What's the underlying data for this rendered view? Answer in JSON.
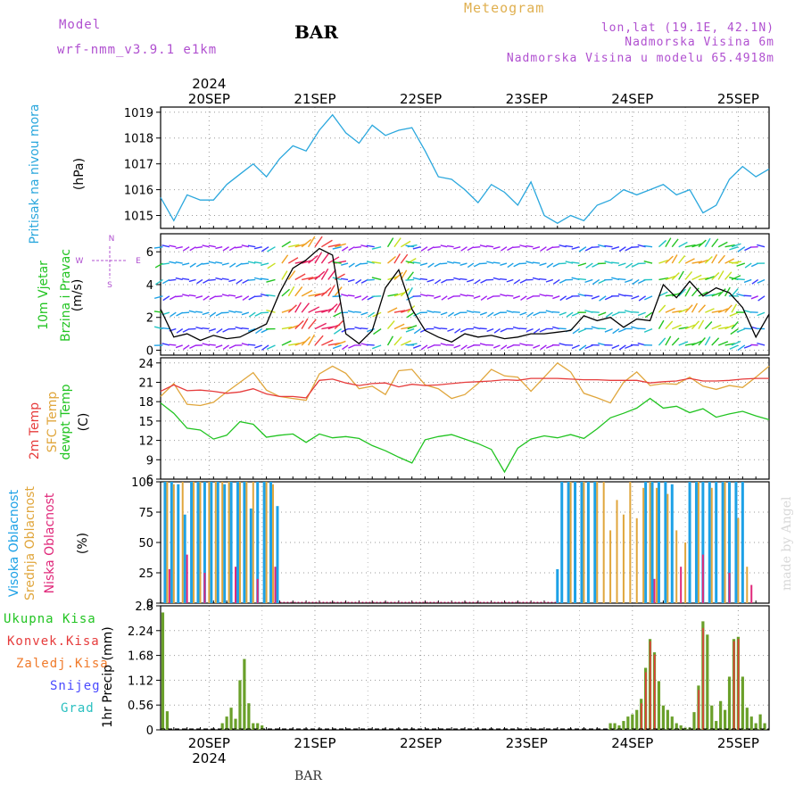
{
  "header": {
    "model_label": "Model",
    "model_value": "wrf-nmm_v3.9.1 e1km",
    "station": "BAR",
    "title": "Meteogram",
    "coords": "lon,lat (19.1E, 42.1N)",
    "elev": "Nadmorska Visina 6m",
    "elev_model": "Nadmorska Visina u modelu 65.4918m",
    "footer_station": "BAR",
    "watermark": "made by Angel"
  },
  "colors": {
    "pressure": "#2aa7dd",
    "t2m": "#e63c3c",
    "sfc": "#e0a63c",
    "dew": "#22c422",
    "high_cloud": "#1da1e6",
    "mid_cloud": "#e0a63c",
    "low_cloud": "#e0287a",
    "total_precip": "#6aa02a",
    "conv_precip": "#e63c3c",
    "snow": "#4a4aff",
    "hail": "#2ac0c0",
    "title": "#e0b050",
    "purple": "#b050d0"
  },
  "chart_data": [
    {
      "type": "line",
      "ylabel": "Pritisak na nivou mora",
      "unit": "(hPa)",
      "ylim": [
        1014.5,
        1019.2
      ],
      "yticks": [
        "1015",
        "1016",
        "1017",
        "1018",
        "1019"
      ],
      "ytick_values": [
        1015,
        1016,
        1017,
        1018,
        1019
      ],
      "xlim": [
        0,
        138
      ],
      "series": [
        {
          "key": "mslp",
          "x": [
            0,
            3,
            6,
            9,
            12,
            15,
            18,
            21,
            24,
            27,
            30,
            33,
            36,
            39,
            42,
            45,
            48,
            51,
            54,
            57,
            60,
            63,
            66,
            69,
            72,
            75,
            78,
            81,
            84,
            87,
            90,
            93,
            96,
            99,
            102,
            105,
            108,
            111,
            114,
            117,
            120,
            123,
            126,
            129,
            132,
            135,
            138
          ],
          "y": [
            1015.7,
            1014.8,
            1015.8,
            1015.6,
            1015.6,
            1016.2,
            1016.6,
            1017.0,
            1016.5,
            1017.2,
            1017.7,
            1017.5,
            1018.3,
            1018.9,
            1018.2,
            1017.8,
            1018.5,
            1018.1,
            1018.3,
            1018.4,
            1017.5,
            1016.5,
            1016.4,
            1016.0,
            1015.5,
            1016.2,
            1015.9,
            1015.4,
            1016.3,
            1015.0,
            1014.7,
            1015.0,
            1014.8,
            1015.4,
            1015.6,
            1016.0,
            1015.8,
            1016.0,
            1016.2,
            1015.8,
            1016.0,
            1015.1,
            1015.4,
            1016.4,
            1016.9,
            1016.5,
            1016.8
          ]
        }
      ]
    },
    {
      "type": "line",
      "ylabel": "10m Vjetar",
      "ylabel2": "Brzina i Pravac",
      "unit": "(m/s)",
      "compass": [
        "N",
        "W",
        "E",
        "S"
      ],
      "ylim": [
        -0.3,
        7.1
      ],
      "yticks": [
        "0",
        "2",
        "4",
        "6"
      ],
      "ytick_values": [
        0,
        2,
        4,
        6
      ],
      "xlim": [
        0,
        138
      ],
      "speed": {
        "x": [
          0,
          3,
          6,
          9,
          12,
          15,
          18,
          21,
          24,
          27,
          30,
          33,
          36,
          39,
          42,
          45,
          48,
          51,
          54,
          57,
          60,
          63,
          66,
          69,
          72,
          75,
          78,
          81,
          84,
          87,
          90,
          93,
          96,
          99,
          102,
          105,
          108,
          111,
          114,
          117,
          120,
          123,
          126,
          129,
          132,
          135,
          138
        ],
        "y": [
          2.5,
          0.8,
          1.0,
          0.6,
          0.9,
          0.7,
          0.8,
          1.2,
          1.6,
          3.5,
          5.0,
          5.5,
          6.2,
          5.8,
          1.0,
          0.4,
          1.2,
          3.8,
          4.9,
          2.5,
          1.2,
          0.8,
          0.5,
          1.0,
          0.8,
          0.9,
          0.7,
          0.8,
          1.0,
          1.0,
          1.1,
          1.2,
          2.1,
          1.8,
          2.0,
          1.4,
          1.9,
          1.8,
          4.0,
          3.2,
          4.2,
          3.3,
          3.8,
          3.5,
          2.6,
          0.8,
          2.2
        ]
      }
    },
    {
      "type": "line",
      "ylabels": [
        "2m Temp",
        "SFC Temp",
        "dewpt Temp"
      ],
      "unit": "(C)",
      "ylim": [
        6,
        24.8
      ],
      "yticks": [
        "6",
        "9",
        "12",
        "15",
        "18",
        "21",
        "24"
      ],
      "ytick_values": [
        6,
        9,
        12,
        15,
        18,
        21,
        24
      ],
      "xlim": [
        0,
        138
      ],
      "series": [
        {
          "key": "t2m",
          "x": [
            0,
            3,
            6,
            9,
            12,
            15,
            18,
            21,
            24,
            27,
            30,
            33,
            36,
            39,
            42,
            45,
            48,
            51,
            54,
            57,
            60,
            63,
            66,
            69,
            72,
            75,
            78,
            81,
            84,
            87,
            90,
            93,
            96,
            99,
            102,
            105,
            108,
            111,
            114,
            117,
            120,
            123,
            126,
            129,
            132,
            135,
            138
          ],
          "y": [
            19.6,
            20.6,
            19.7,
            19.8,
            19.6,
            19.3,
            19.5,
            20.0,
            19.2,
            18.8,
            18.8,
            18.6,
            21.3,
            21.5,
            20.9,
            20.5,
            20.8,
            20.9,
            20.3,
            20.7,
            20.5,
            20.6,
            20.8,
            21.0,
            21.1,
            21.2,
            21.4,
            21.3,
            21.6,
            21.6,
            21.6,
            21.5,
            21.4,
            21.4,
            21.3,
            21.3,
            21.3,
            20.9,
            21.1,
            21.2,
            21.6,
            21.2,
            21.2,
            21.3,
            21.5,
            21.6,
            21.6
          ]
        },
        {
          "key": "sfc",
          "x": [
            0,
            3,
            6,
            9,
            12,
            15,
            18,
            21,
            24,
            27,
            30,
            33,
            36,
            39,
            42,
            45,
            48,
            51,
            54,
            57,
            60,
            63,
            66,
            69,
            72,
            75,
            78,
            81,
            84,
            87,
            90,
            93,
            96,
            99,
            102,
            105,
            108,
            111,
            114,
            117,
            120,
            123,
            126,
            129,
            132,
            135,
            138
          ],
          "y": [
            18.8,
            20.8,
            17.6,
            17.4,
            17.9,
            19.5,
            21.0,
            22.5,
            19.8,
            18.8,
            18.5,
            18.2,
            22.3,
            23.5,
            22.4,
            20.0,
            20.4,
            19.1,
            22.8,
            23.0,
            20.6,
            20.0,
            18.5,
            19.1,
            20.8,
            23.0,
            22.0,
            21.8,
            19.6,
            21.8,
            24.0,
            22.6,
            19.3,
            18.6,
            17.8,
            21.0,
            22.6,
            20.5,
            20.8,
            20.7,
            21.8,
            20.4,
            19.9,
            20.5,
            20.2,
            21.8,
            23.5
          ]
        },
        {
          "key": "dew",
          "x": [
            0,
            3,
            6,
            9,
            12,
            15,
            18,
            21,
            24,
            27,
            30,
            33,
            36,
            39,
            42,
            45,
            48,
            51,
            54,
            57,
            60,
            63,
            66,
            69,
            72,
            75,
            78,
            81,
            84,
            87,
            90,
            93,
            96,
            99,
            102,
            105,
            108,
            111,
            114,
            117,
            120,
            123,
            126,
            129,
            132,
            135,
            138
          ],
          "y": [
            17.8,
            16.2,
            13.9,
            13.6,
            12.2,
            12.8,
            14.9,
            14.5,
            12.5,
            12.8,
            13.0,
            11.7,
            13.0,
            12.4,
            12.6,
            12.3,
            11.2,
            10.4,
            9.4,
            8.5,
            12.1,
            12.6,
            12.9,
            12.2,
            11.5,
            10.6,
            7.1,
            10.8,
            12.2,
            12.7,
            12.4,
            12.9,
            12.3,
            13.8,
            15.5,
            16.2,
            17.0,
            18.5,
            17.0,
            17.3,
            16.3,
            16.9,
            15.6,
            16.1,
            16.5,
            15.8,
            15.2
          ]
        }
      ]
    },
    {
      "type": "bar",
      "ylabels": [
        "Visoka Oblacnost",
        "Srednja Oblacnost",
        "Niska Oblacnost"
      ],
      "unit": "(%)",
      "ylim": [
        0,
        100
      ],
      "yticks": [
        "0",
        "25",
        "50",
        "75",
        "100"
      ],
      "ytick_values": [
        0,
        25,
        50,
        75,
        100
      ],
      "xlim": [
        0,
        138
      ],
      "series": [
        {
          "key": "high",
          "x": [
            1,
            2.5,
            4,
            5.5,
            7,
            8.5,
            10,
            11.5,
            13,
            14.5,
            16,
            17.5,
            19,
            20.5,
            22,
            23.5,
            25,
            26.5,
            90,
            91,
            92.5,
            94,
            95.5,
            97,
            98.5,
            110,
            111.5,
            113,
            114.5,
            116,
            120,
            121.5,
            123,
            124.5,
            126,
            127.5,
            129,
            130.5,
            132
          ],
          "y": [
            100,
            100,
            98,
            73,
            100,
            100,
            100,
            100,
            100,
            98,
            100,
            100,
            100,
            78,
            100,
            100,
            100,
            80,
            28,
            100,
            100,
            100,
            100,
            100,
            100,
            100,
            100,
            100,
            100,
            98,
            100,
            100,
            100,
            100,
            100,
            100,
            100,
            100,
            100
          ]
        },
        {
          "key": "mid",
          "x": [
            1.5,
            3,
            5,
            7.5,
            9,
            11,
            12.5,
            14,
            15.5,
            18,
            19.5,
            21,
            24,
            25.5,
            93,
            96,
            99,
            100.5,
            102,
            103.5,
            105,
            106.5,
            108,
            109.5,
            111,
            112.5,
            115,
            117,
            119,
            122,
            125,
            128,
            131,
            133
          ],
          "y": [
            100,
            98,
            100,
            100,
            100,
            100,
            100,
            100,
            100,
            100,
            100,
            100,
            100,
            98,
            100,
            100,
            100,
            100,
            60,
            85,
            73,
            100,
            70,
            95,
            100,
            95,
            90,
            60,
            50,
            100,
            95,
            100,
            70,
            30
          ]
        },
        {
          "key": "low",
          "x": [
            2,
            6,
            10,
            17,
            22,
            26,
            112,
            118,
            123,
            129,
            134
          ],
          "y": [
            28,
            40,
            25,
            30,
            20,
            30,
            20,
            30,
            40,
            25,
            15
          ]
        }
      ]
    },
    {
      "type": "bar",
      "ylabels": [
        "Ukupna Kisa",
        "Konvek.Kisa",
        "Zaledj.Kisa",
        "Snijeg",
        "Grad"
      ],
      "ylabel_right": "1hr Precip (mm)",
      "ylim": [
        0,
        2.8
      ],
      "yticks": [
        "0",
        "0.56",
        "1.12",
        "1.68",
        "2.24",
        "2.8"
      ],
      "ytick_values": [
        0,
        0.56,
        1.12,
        1.68,
        2.24,
        2.8
      ],
      "xlim": [
        0,
        138
      ],
      "series": [
        {
          "key": "total",
          "x": [
            0.5,
            1.5,
            14,
            15,
            16,
            17,
            18,
            19,
            20,
            21,
            22,
            23,
            102,
            103,
            104,
            105,
            106,
            107,
            108,
            109,
            110,
            111,
            112,
            113,
            114,
            115,
            116,
            117,
            118,
            119,
            120,
            121,
            122,
            123,
            124,
            125,
            126,
            127,
            128,
            129,
            130,
            131,
            132,
            133,
            134,
            135,
            136,
            137
          ],
          "y": [
            2.65,
            0.42,
            0.15,
            0.3,
            0.5,
            0.25,
            1.12,
            1.6,
            0.6,
            0.15,
            0.15,
            0.1,
            0.15,
            0.15,
            0.1,
            0.2,
            0.3,
            0.35,
            0.45,
            0.7,
            1.4,
            2.05,
            1.75,
            1.1,
            0.55,
            0.45,
            0.3,
            0.15,
            0.1,
            0.05,
            0.05,
            0.4,
            1.0,
            2.45,
            2.15,
            0.55,
            0.2,
            0.65,
            0.45,
            1.2,
            2.05,
            2.1,
            1.2,
            0.5,
            0.3,
            0.15,
            0.35,
            0.15
          ]
        },
        {
          "key": "conv",
          "x": [
            109,
            110,
            111,
            112,
            122,
            123,
            130,
            131
          ],
          "y": [
            0.6,
            1.3,
            2.0,
            1.7,
            0.9,
            2.3,
            2.0,
            2.05
          ]
        }
      ]
    }
  ],
  "axes": {
    "top_year": "2024",
    "bottom_year": "2024",
    "day_labels": [
      "20SEP",
      "21SEP",
      "22SEP",
      "23SEP",
      "24SEP",
      "25SEP"
    ],
    "day_positions": [
      11,
      35,
      59,
      83,
      107,
      131
    ]
  }
}
